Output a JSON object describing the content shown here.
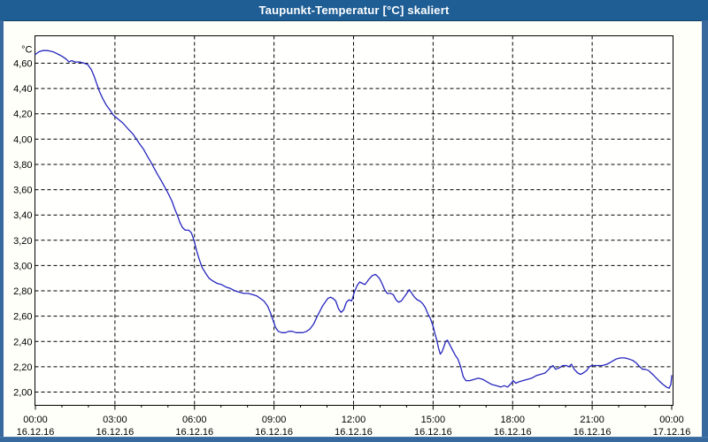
{
  "window": {
    "title": "Taupunkt-Temperatur [°C] skaliert"
  },
  "colors": {
    "titlebar_background": "#1f5e94",
    "titlebar_text": "#ffffff",
    "window_border": "#38699e",
    "panel_background": "#fffffa",
    "plot_background": "#fffffe",
    "grid_and_frame": "#000000",
    "series_line": "#2626bd"
  },
  "chart_data": {
    "type": "line",
    "title": "Taupunkt-Temperatur [°C] skaliert",
    "ylabel_unit": "°C",
    "grid": "dashed, horizontal every 0.20 °C, vertical every 3 h",
    "legend_position": "none",
    "x_axis": {
      "span_hours": 24,
      "major_tick_every_hours": 3,
      "minor_tick_every_hours": 1,
      "tick_times": [
        "00:00",
        "03:00",
        "06:00",
        "09:00",
        "12:00",
        "15:00",
        "18:00",
        "21:00",
        "00:00"
      ],
      "tick_dates": [
        "16.12.16",
        "16.12.16",
        "16.12.16",
        "16.12.16",
        "16.12.16",
        "16.12.16",
        "16.12.16",
        "16.12.16",
        "17.12.16"
      ]
    },
    "y_axis": {
      "min": 2.0,
      "max": 4.6,
      "step": 0.2,
      "tick_labels_top_to_bottom": [
        "4,60",
        "4,40",
        "4,20",
        "4,00",
        "3,80",
        "3,60",
        "3,40",
        "3,20",
        "3,00",
        "2,80",
        "2,60",
        "2,40",
        "2,20",
        "2,00"
      ]
    },
    "series": [
      {
        "name": "Taupunkt-Temperatur",
        "x_unit": "hours since 00:00 16.12.16",
        "y_unit": "°C",
        "points": [
          [
            0,
            4.67
          ],
          [
            0.13,
            4.69
          ],
          [
            0.27,
            4.7
          ],
          [
            0.47,
            4.7
          ],
          [
            0.67,
            4.69
          ],
          [
            0.87,
            4.67
          ],
          [
            1.04,
            4.65
          ],
          [
            1.17,
            4.63
          ],
          [
            1.27,
            4.61
          ],
          [
            1.37,
            4.62
          ],
          [
            1.5,
            4.61
          ],
          [
            1.67,
            4.61
          ],
          [
            1.84,
            4.6
          ],
          [
            1.97,
            4.59
          ],
          [
            2.11,
            4.55
          ],
          [
            2.21,
            4.5
          ],
          [
            2.31,
            4.44
          ],
          [
            2.41,
            4.38
          ],
          [
            2.54,
            4.32
          ],
          [
            2.67,
            4.27
          ],
          [
            2.81,
            4.23
          ],
          [
            2.94,
            4.19
          ],
          [
            3.11,
            4.16
          ],
          [
            3.28,
            4.13
          ],
          [
            3.41,
            4.1
          ],
          [
            3.54,
            4.07
          ],
          [
            3.68,
            4.04
          ],
          [
            3.81,
            4.0
          ],
          [
            3.94,
            3.96
          ],
          [
            4.08,
            3.92
          ],
          [
            4.21,
            3.87
          ],
          [
            4.35,
            3.82
          ],
          [
            4.48,
            3.77
          ],
          [
            4.61,
            3.72
          ],
          [
            4.75,
            3.67
          ],
          [
            4.88,
            3.62
          ],
          [
            5.01,
            3.57
          ],
          [
            5.15,
            3.51
          ],
          [
            5.25,
            3.45
          ],
          [
            5.35,
            3.4
          ],
          [
            5.45,
            3.34
          ],
          [
            5.55,
            3.3
          ],
          [
            5.65,
            3.28
          ],
          [
            5.78,
            3.28
          ],
          [
            5.88,
            3.26
          ],
          [
            5.98,
            3.2
          ],
          [
            6.08,
            3.12
          ],
          [
            6.18,
            3.05
          ],
          [
            6.28,
            2.99
          ],
          [
            6.42,
            2.94
          ],
          [
            6.55,
            2.9
          ],
          [
            6.68,
            2.88
          ],
          [
            6.85,
            2.86
          ],
          [
            7.02,
            2.85
          ],
          [
            7.19,
            2.83
          ],
          [
            7.35,
            2.82
          ],
          [
            7.52,
            2.8
          ],
          [
            7.69,
            2.79
          ],
          [
            7.85,
            2.78
          ],
          [
            8.02,
            2.78
          ],
          [
            8.19,
            2.77
          ],
          [
            8.35,
            2.76
          ],
          [
            8.49,
            2.74
          ],
          [
            8.62,
            2.72
          ],
          [
            8.76,
            2.68
          ],
          [
            8.86,
            2.63
          ],
          [
            8.96,
            2.57
          ],
          [
            9.06,
            2.51
          ],
          [
            9.16,
            2.48
          ],
          [
            9.29,
            2.47
          ],
          [
            9.43,
            2.47
          ],
          [
            9.56,
            2.48
          ],
          [
            9.69,
            2.48
          ],
          [
            9.83,
            2.47
          ],
          [
            9.96,
            2.47
          ],
          [
            10.09,
            2.47
          ],
          [
            10.23,
            2.48
          ],
          [
            10.36,
            2.5
          ],
          [
            10.5,
            2.54
          ],
          [
            10.63,
            2.6
          ],
          [
            10.73,
            2.64
          ],
          [
            10.83,
            2.68
          ],
          [
            10.93,
            2.71
          ],
          [
            11.03,
            2.74
          ],
          [
            11.13,
            2.75
          ],
          [
            11.23,
            2.74
          ],
          [
            11.33,
            2.72
          ],
          [
            11.43,
            2.66
          ],
          [
            11.53,
            2.63
          ],
          [
            11.63,
            2.65
          ],
          [
            11.73,
            2.71
          ],
          [
            11.83,
            2.73
          ],
          [
            11.93,
            2.72
          ],
          [
            12.03,
            2.79
          ],
          [
            12.13,
            2.84
          ],
          [
            12.23,
            2.87
          ],
          [
            12.33,
            2.86
          ],
          [
            12.43,
            2.85
          ],
          [
            12.57,
            2.89
          ],
          [
            12.7,
            2.92
          ],
          [
            12.83,
            2.93
          ],
          [
            12.97,
            2.9
          ],
          [
            13.07,
            2.86
          ],
          [
            13.17,
            2.81
          ],
          [
            13.27,
            2.78
          ],
          [
            13.4,
            2.78
          ],
          [
            13.5,
            2.77
          ],
          [
            13.6,
            2.73
          ],
          [
            13.7,
            2.71
          ],
          [
            13.8,
            2.72
          ],
          [
            13.94,
            2.76
          ],
          [
            14.04,
            2.79
          ],
          [
            14.1,
            2.81
          ],
          [
            14.2,
            2.78
          ],
          [
            14.3,
            2.75
          ],
          [
            14.4,
            2.73
          ],
          [
            14.5,
            2.72
          ],
          [
            14.6,
            2.7
          ],
          [
            14.7,
            2.67
          ],
          [
            14.8,
            2.62
          ],
          [
            14.9,
            2.58
          ],
          [
            15.0,
            2.52
          ],
          [
            15.07,
            2.46
          ],
          [
            15.14,
            2.41
          ],
          [
            15.2,
            2.35
          ],
          [
            15.27,
            2.3
          ],
          [
            15.34,
            2.32
          ],
          [
            15.41,
            2.36
          ],
          [
            15.47,
            2.4
          ],
          [
            15.54,
            2.41
          ],
          [
            15.64,
            2.37
          ],
          [
            15.74,
            2.33
          ],
          [
            15.84,
            2.29
          ],
          [
            15.94,
            2.26
          ],
          [
            16.04,
            2.2
          ],
          [
            16.14,
            2.12
          ],
          [
            16.24,
            2.09
          ],
          [
            16.38,
            2.09
          ],
          [
            16.54,
            2.1
          ],
          [
            16.71,
            2.11
          ],
          [
            16.88,
            2.1
          ],
          [
            17.04,
            2.08
          ],
          [
            17.21,
            2.06
          ],
          [
            17.38,
            2.05
          ],
          [
            17.55,
            2.04
          ],
          [
            17.68,
            2.05
          ],
          [
            17.81,
            2.04
          ],
          [
            17.95,
            2.07
          ],
          [
            18.02,
            2.09
          ],
          [
            18.12,
            2.07
          ],
          [
            18.22,
            2.08
          ],
          [
            18.38,
            2.09
          ],
          [
            18.55,
            2.1
          ],
          [
            18.72,
            2.11
          ],
          [
            18.89,
            2.13
          ],
          [
            19.05,
            2.14
          ],
          [
            19.22,
            2.15
          ],
          [
            19.32,
            2.17
          ],
          [
            19.45,
            2.2
          ],
          [
            19.52,
            2.21
          ],
          [
            19.62,
            2.18
          ],
          [
            19.75,
            2.19
          ],
          [
            19.89,
            2.21
          ],
          [
            20.02,
            2.21
          ],
          [
            20.12,
            2.2
          ],
          [
            20.22,
            2.22
          ],
          [
            20.32,
            2.18
          ],
          [
            20.46,
            2.15
          ],
          [
            20.56,
            2.14
          ],
          [
            20.66,
            2.15
          ],
          [
            20.79,
            2.17
          ],
          [
            20.89,
            2.2
          ],
          [
            20.99,
            2.21
          ],
          [
            21.12,
            2.21
          ],
          [
            21.26,
            2.21
          ],
          [
            21.39,
            2.21
          ],
          [
            21.56,
            2.22
          ],
          [
            21.73,
            2.24
          ],
          [
            21.89,
            2.26
          ],
          [
            22.06,
            2.27
          ],
          [
            22.23,
            2.27
          ],
          [
            22.4,
            2.26
          ],
          [
            22.53,
            2.25
          ],
          [
            22.66,
            2.23
          ],
          [
            22.8,
            2.2
          ],
          [
            22.9,
            2.18
          ],
          [
            23.0,
            2.18
          ],
          [
            23.13,
            2.17
          ],
          [
            23.23,
            2.15
          ],
          [
            23.33,
            2.13
          ],
          [
            23.47,
            2.1
          ],
          [
            23.57,
            2.08
          ],
          [
            23.67,
            2.06
          ],
          [
            23.8,
            2.04
          ],
          [
            23.9,
            2.03
          ],
          [
            23.97,
            2.06
          ],
          [
            24.0,
            2.13
          ]
        ]
      }
    ]
  }
}
